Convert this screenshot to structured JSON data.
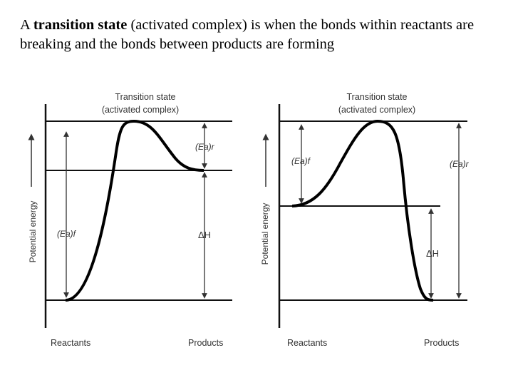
{
  "caption": {
    "prefix": "A ",
    "bold": "transition state",
    "rest": " (activated complex) is when the bonds within reactants are breaking and the bonds between products are forming"
  },
  "diagrams": [
    {
      "transition_state_line1": "Transition state",
      "transition_state_line2": "(activated complex)",
      "y_axis_label": "Potential energy",
      "ea_reverse_label": "(Ea)r",
      "ea_forward_label": "(Ea)f",
      "delta_h_label": "ΔH",
      "reactants_label": "Reactants",
      "products_label": "Products"
    },
    {
      "transition_state_line1": "Transition state",
      "transition_state_line2": "(activated complex)",
      "y_axis_label": "Potential energy",
      "ea_forward_label": "(Ea)f",
      "ea_reverse_label": "(Ea)r",
      "delta_h_label": "ΔH",
      "reactants_label": "Reactants",
      "products_label": "Products"
    }
  ]
}
